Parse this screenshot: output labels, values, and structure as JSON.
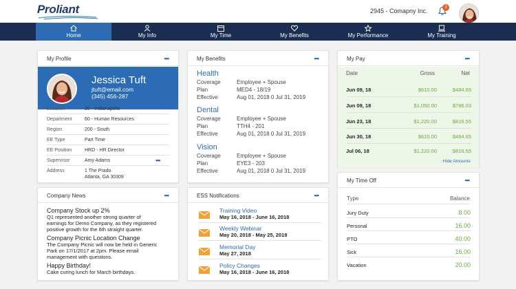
{
  "brand": {
    "logo_text": "Proliant"
  },
  "header": {
    "company": "2945 - Comapny Inc.",
    "notification_count": "3"
  },
  "nav": {
    "items": [
      {
        "label": "Home",
        "icon": "home-icon",
        "active": true
      },
      {
        "label": "My Info",
        "icon": "user-icon"
      },
      {
        "label": "My Time",
        "icon": "calendar-icon"
      },
      {
        "label": "My Benefits",
        "icon": "heart-icon"
      },
      {
        "label": "My Performance",
        "icon": "star-icon"
      },
      {
        "label": "My Training",
        "icon": "laptop-icon"
      }
    ]
  },
  "profile": {
    "title": "My Profile",
    "name": "Jessica Tuft",
    "email": "jtuft@email.com",
    "phone": "(345) 456-287",
    "fields": [
      {
        "label": "Location",
        "value": "20 - Indianapolis"
      },
      {
        "label": "Department",
        "value": "60 - Human Resources"
      },
      {
        "label": "Region",
        "value": "200 - South"
      },
      {
        "label": "EE Type",
        "value": "Part Time"
      },
      {
        "label": "EE Position",
        "value": "HRD - HR Director"
      },
      {
        "label": "Supervisor",
        "value": "Amy Adams"
      },
      {
        "label": "Address",
        "value": "1 The Prado"
      }
    ],
    "address_line2": "Atlanta, GA 30309"
  },
  "benefits": {
    "title": "My Benefits",
    "groups": [
      {
        "name": "Health",
        "coverage": "Employee + Spouse",
        "plan": "MED4 - 18/19",
        "effective": "Aug 01, 2018 0 Jul 31, 2019"
      },
      {
        "name": "Dental",
        "coverage": "Employee + Spouse",
        "plan": "TTH4 - 201",
        "effective": "Aug 01, 2018 0 Jul 31, 2019"
      },
      {
        "name": "Vision",
        "coverage": "Employee + Spouse",
        "plan": "EYE3 - 203",
        "effective": "Aug 01, 2018 0 Jul 31, 2019"
      }
    ],
    "labels": {
      "coverage": "Coverage",
      "plan": "Plan",
      "effective": "Effective"
    }
  },
  "pay": {
    "title": "My Pay",
    "headers": {
      "date": "Date",
      "gross": "Gross",
      "net": "Net"
    },
    "rows": [
      {
        "date": "Jun 09, 18",
        "gross": "$610.00",
        "net": "$484.65"
      },
      {
        "date": "Jun 09, 18",
        "gross": "$1,050.00",
        "net": "$786.03"
      },
      {
        "date": "Jun 23, 18",
        "gross": "$1,220.00",
        "net": "$816.55"
      },
      {
        "date": "Jun 30, 18",
        "gross": "$610.00",
        "net": "$484.65"
      },
      {
        "date": "Jul 06, 18",
        "gross": "$1,220.00",
        "net": "$816.55"
      }
    ],
    "hide_link": "Hide Amounts"
  },
  "time_off": {
    "title": "My Time Off",
    "headers": {
      "type": "Type",
      "balance": "Balance"
    },
    "rows": [
      {
        "type": "Jury Duty",
        "balance": "8.00"
      },
      {
        "type": "Personal",
        "balance": "16.00"
      },
      {
        "type": "PTO",
        "balance": "40.00"
      },
      {
        "type": "Sick",
        "balance": "16.00"
      },
      {
        "type": "Vacation",
        "balance": "20.00"
      }
    ]
  },
  "news": {
    "title": "Company News",
    "items": [
      {
        "headline": "Company Stock up 2%",
        "body": [
          "Q1 represented another strong quarter of",
          "earnings for Demo Company, as they registered",
          "positive growth for the 6th straight quarter."
        ]
      },
      {
        "headline": "Company Picnic Location Change",
        "body": [
          "The Company Picnic will now be held in Generic",
          "Park on 17/1/2017 at 2pm. Please email",
          "management with questions."
        ]
      },
      {
        "headline": "Happy Birthday!",
        "body": [
          "Cake curing lunch for March birthdays."
        ]
      }
    ]
  },
  "ess": {
    "title": "ESS Notifications",
    "items": [
      {
        "title": "Training Video",
        "date": "May 16, 2018 - June 16, 2018"
      },
      {
        "title": "Weekly Webinar",
        "date": "May 20, 2018 - May 25, 2018"
      },
      {
        "title": "Memorial Day",
        "date": "May 27, 2018"
      },
      {
        "title": "Policy Changes",
        "date": "May 16, 2018 - June 16, 2018"
      }
    ]
  },
  "colors": {
    "nav_bg": "#1b2e52",
    "nav_active": "#2f6bb3",
    "accent": "#2f6bb3",
    "positive": "#6aa93b",
    "badge": "#e5602a",
    "envelope": "#f0a13a"
  }
}
